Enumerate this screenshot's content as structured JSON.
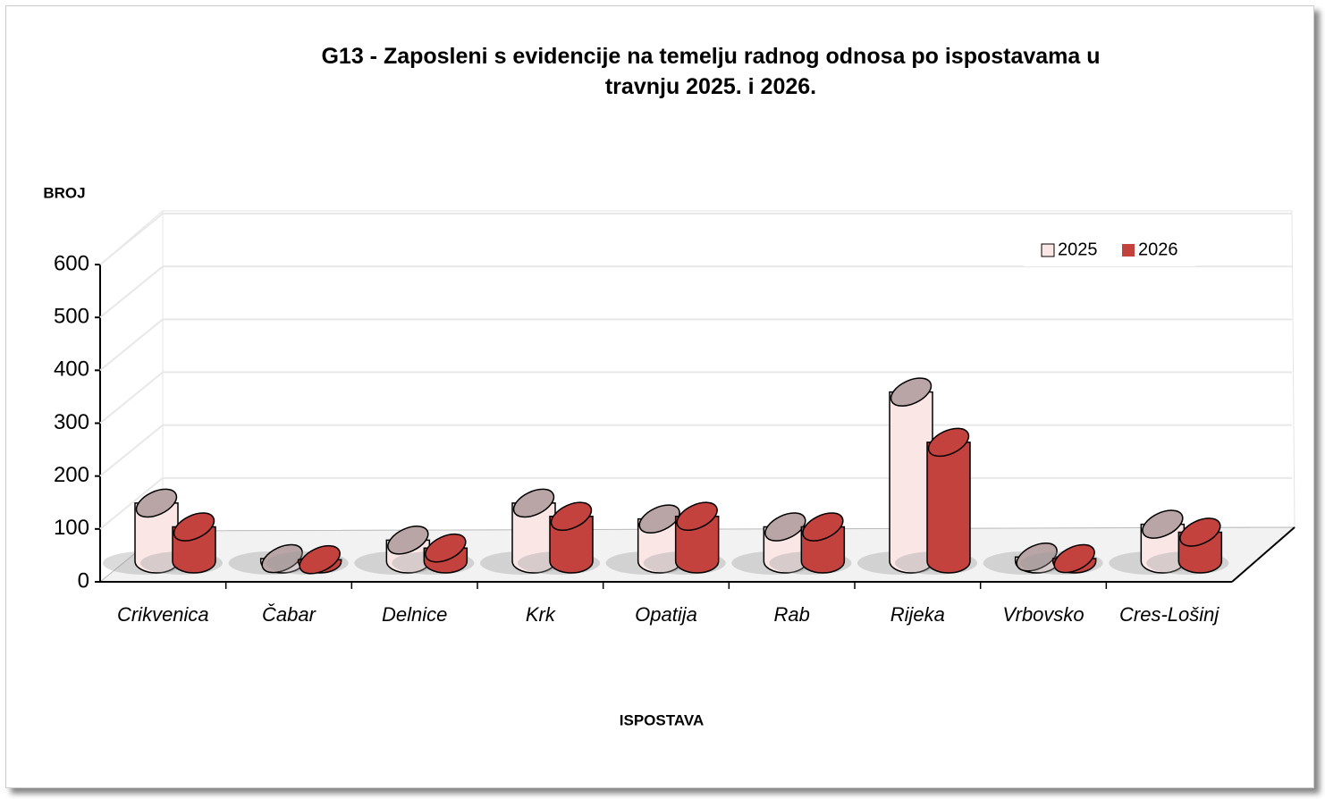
{
  "chart_data": {
    "type": "bar3d",
    "title": "G13 - Zaposleni s evidencije na temelju radnog odnosa po ispostavama u travnju 2025. i 2026.",
    "y_label": "BROJ",
    "x_label": "ISPOSTAVA",
    "categories": [
      "Crikvenica",
      "Čabar",
      "Delnice",
      "Krk",
      "Opatija",
      "Rab",
      "Rijeka",
      "Vrbovsko",
      "Cres-Lošinj"
    ],
    "series": [
      {
        "name": "2025",
        "color": "#fbe6e6",
        "values": [
          110,
          5,
          40,
          110,
          80,
          65,
          320,
          8,
          70
        ]
      },
      {
        "name": "2026",
        "color": "#c4423e",
        "values": [
          65,
          3,
          25,
          85,
          85,
          65,
          225,
          5,
          55
        ]
      }
    ],
    "ylim": [
      0,
      600
    ],
    "yticks": [
      0,
      100,
      200,
      300,
      400,
      500,
      600
    ],
    "grid": true,
    "legend": "top-right"
  }
}
